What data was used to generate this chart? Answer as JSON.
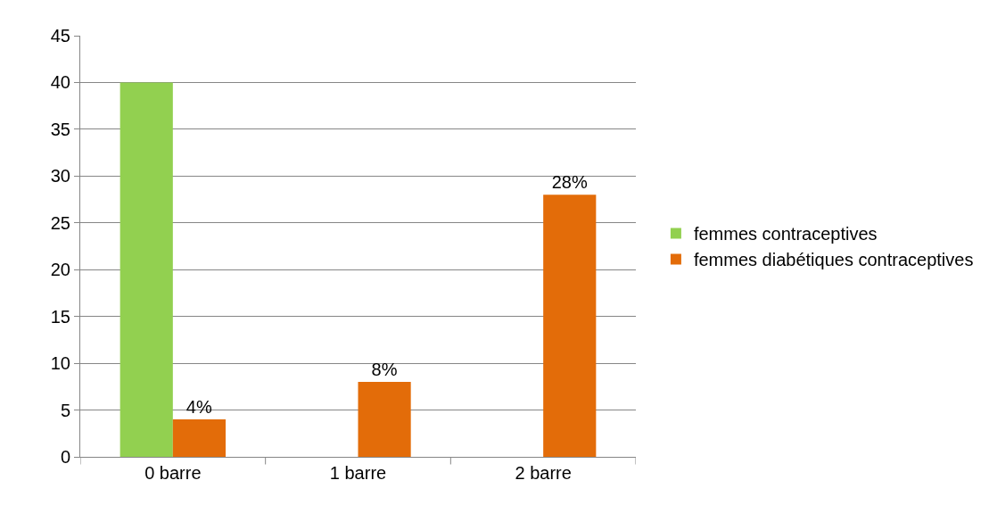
{
  "chart_data": {
    "type": "bar",
    "categories": [
      "0 barre",
      "1 barre",
      "2 barre"
    ],
    "series": [
      {
        "name": "femmes contraceptives",
        "color": "#92d050",
        "values": [
          40,
          null,
          null
        ]
      },
      {
        "name": "femmes diabétiques contraceptives",
        "color": "#e36c09",
        "values": [
          4,
          8,
          28
        ],
        "value_labels": [
          "4%",
          "8%",
          "28%"
        ]
      }
    ],
    "ylim": [
      0,
      45
    ],
    "yticks": [
      0,
      5,
      10,
      15,
      20,
      25,
      30,
      35,
      40,
      45
    ],
    "grid": "y",
    "legend": "right"
  }
}
